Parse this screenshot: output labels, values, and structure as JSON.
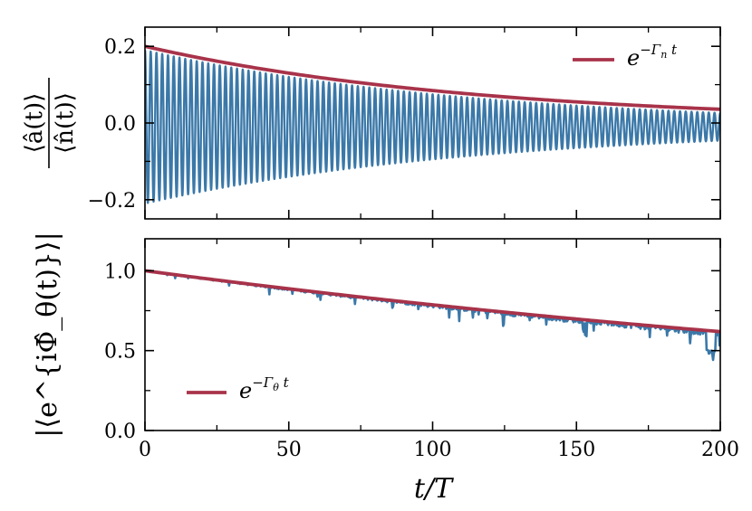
{
  "chart_data": [
    {
      "type": "line",
      "panel": "top",
      "ylabel_numerator": "⟨â(t)⟩",
      "ylabel_denominator": "⟨n̂(t)⟩",
      "xlim": [
        0,
        200
      ],
      "ylim": [
        -0.25,
        0.25
      ],
      "yticks": [
        -0.2,
        0.0,
        0.2
      ],
      "ytick_labels": [
        "−0.2",
        "0.0",
        "0.2"
      ],
      "xticks": [
        0,
        50,
        100,
        150,
        200
      ],
      "xtick_labels_visible": false,
      "legend": {
        "label": "e^{−Γ_n t}",
        "placement": "top-right"
      },
      "series": [
        {
          "name": "⟨â(t)⟩/⟨n̂(t)⟩",
          "kind": "oscillation",
          "color": "#3b78a8",
          "amplitude_start": 0.2,
          "amplitude_end": 0.036,
          "offset": -0.01,
          "period": 1.0
        },
        {
          "name": "e^{−Γ_n t}",
          "kind": "exponential",
          "color": "#a8334a",
          "y0": 0.2,
          "rate": 0.0086
        }
      ]
    },
    {
      "type": "line",
      "panel": "bottom",
      "ylabel": "|⟨e^{iΦ̂_θ(t)}⟩|",
      "xlabel": "t/T",
      "xlim": [
        0,
        200
      ],
      "ylim": [
        0.0,
        1.2
      ],
      "yticks": [
        0.0,
        0.5,
        1.0
      ],
      "ytick_labels": [
        "0.0",
        "0.5",
        "1.0"
      ],
      "xticks": [
        0,
        50,
        100,
        150,
        200
      ],
      "xtick_labels": [
        "0",
        "50",
        "100",
        "150",
        "200"
      ],
      "legend": {
        "label": "e^{−Γ_θ t}",
        "placement": "lower-left"
      },
      "series": [
        {
          "name": "|⟨e^{iΦ̂_θ(t)}⟩|",
          "kind": "noisy-decay",
          "color": "#3b78a8",
          "y0": 1.0,
          "y_end": 0.62
        },
        {
          "name": "e^{−Γ_θ t}",
          "kind": "exponential",
          "color": "#a8334a",
          "y0": 1.0,
          "rate": 0.0024
        }
      ]
    }
  ]
}
